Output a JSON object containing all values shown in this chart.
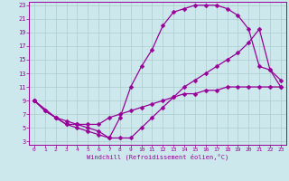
{
  "xlabel": "Windchill (Refroidissement éolien,°C)",
  "bg_color": "#cce8ec",
  "grid_color": "#aacccc",
  "line_color": "#990099",
  "xlim": [
    -0.5,
    23.5
  ],
  "ylim": [
    2.5,
    23.5
  ],
  "xticks": [
    0,
    1,
    2,
    3,
    4,
    5,
    6,
    7,
    8,
    9,
    10,
    11,
    12,
    13,
    14,
    15,
    16,
    17,
    18,
    19,
    20,
    21,
    22,
    23
  ],
  "yticks": [
    3,
    5,
    7,
    9,
    11,
    13,
    15,
    17,
    19,
    21,
    23
  ],
  "curve1_x": [
    0,
    1,
    2,
    3,
    4,
    5,
    6,
    7,
    8,
    9,
    10,
    11,
    12,
    13,
    14,
    15,
    16,
    17,
    18,
    19,
    20,
    21,
    22,
    23
  ],
  "curve1_y": [
    9,
    7.5,
    6.5,
    6.0,
    5.5,
    5.5,
    5.5,
    6.5,
    7.0,
    7.5,
    8.0,
    8.5,
    9.0,
    9.5,
    10.0,
    10.0,
    10.5,
    10.5,
    11.0,
    11.0,
    11.0,
    11.0,
    11.0,
    11.0
  ],
  "curve2_x": [
    0,
    1,
    2,
    3,
    4,
    5,
    6,
    7,
    8,
    9,
    10,
    11,
    12,
    13,
    14,
    15,
    16,
    17,
    18,
    19,
    20,
    21,
    22,
    23
  ],
  "curve2_y": [
    9,
    7.5,
    6.5,
    5.5,
    5.5,
    5.0,
    4.5,
    3.5,
    6.5,
    11.0,
    14.0,
    16.5,
    20.0,
    22.0,
    22.5,
    23.0,
    23.0,
    23.0,
    22.5,
    21.5,
    19.5,
    14.0,
    13.5,
    11.0
  ],
  "curve3_x": [
    0,
    2,
    3,
    4,
    5,
    6,
    7,
    8,
    9,
    10,
    11,
    12,
    13,
    14,
    15,
    16,
    17,
    18,
    19,
    20,
    21,
    22,
    23
  ],
  "curve3_y": [
    9,
    6.5,
    5.5,
    5.0,
    4.5,
    4.0,
    3.5,
    3.5,
    3.5,
    5.0,
    6.5,
    8.0,
    9.5,
    11.0,
    12.0,
    13.0,
    14.0,
    15.0,
    16.0,
    17.5,
    19.5,
    13.5,
    12.0
  ],
  "markersize": 2.5,
  "linewidth": 0.9
}
